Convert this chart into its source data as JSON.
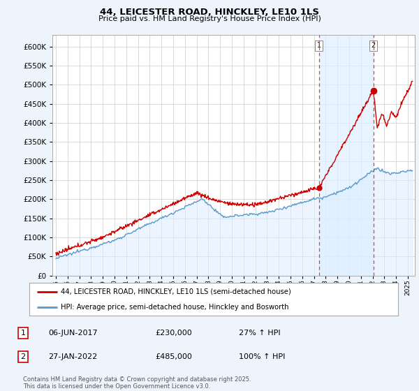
{
  "title1": "44, LEICESTER ROAD, HINCKLEY, LE10 1LS",
  "title2": "Price paid vs. HM Land Registry's House Price Index (HPI)",
  "ylim": [
    0,
    620000
  ],
  "yticks": [
    0,
    50000,
    100000,
    150000,
    200000,
    250000,
    300000,
    350000,
    400000,
    450000,
    500000,
    550000,
    600000
  ],
  "xlim_start": 1994.7,
  "xlim_end": 2025.6,
  "red_color": "#cc0000",
  "blue_fill_color": "#ddeeff",
  "blue_line_color": "#5599cc",
  "vline1_x": 2017.44,
  "vline2_x": 2022.07,
  "vline_color": "#dd4444",
  "marker1_x": 2017.44,
  "marker1_y": 230000,
  "marker2_x": 2022.07,
  "marker2_y": 485000,
  "legend_label_red": "44, LEICESTER ROAD, HINCKLEY, LE10 1LS (semi-detached house)",
  "legend_label_blue": "HPI: Average price, semi-detached house, Hinckley and Bosworth",
  "annotation1_num": "1",
  "annotation1_date": "06-JUN-2017",
  "annotation1_price": "£230,000",
  "annotation1_hpi": "27% ↑ HPI",
  "annotation2_num": "2",
  "annotation2_date": "27-JAN-2022",
  "annotation2_price": "£485,000",
  "annotation2_hpi": "100% ↑ HPI",
  "footer": "Contains HM Land Registry data © Crown copyright and database right 2025.\nThis data is licensed under the Open Government Licence v3.0.",
  "bg_color": "#eef4fb",
  "plot_bg_color": "#ffffff",
  "grid_color": "#cccccc",
  "shade_between_vlines_color": "#ddeeff"
}
